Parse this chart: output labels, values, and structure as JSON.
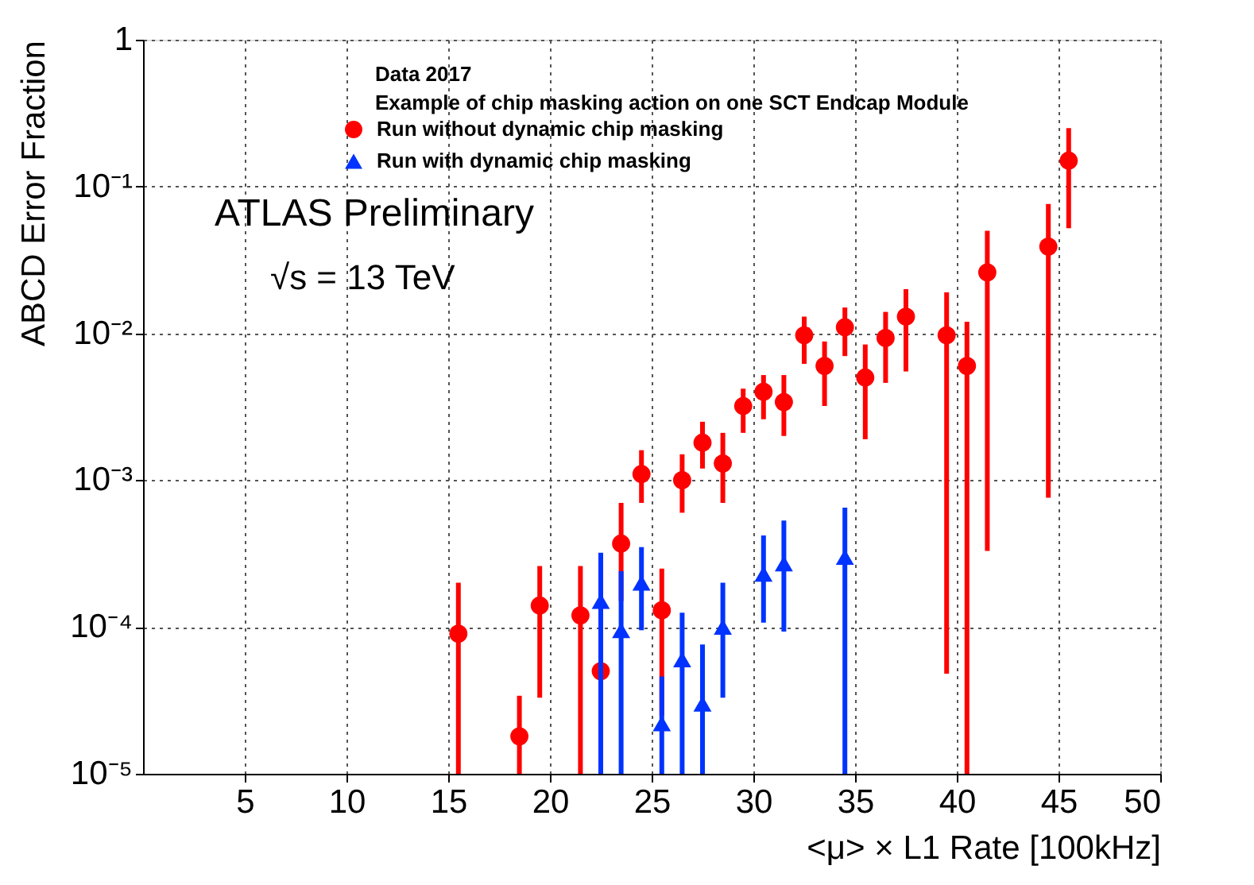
{
  "chart_data": {
    "type": "scatter",
    "xlabel": "<μ> × L1 Rate [100kHz]",
    "ylabel": "ABCD Error Fraction",
    "annotations": [
      "Data 2017",
      "Example of chip masking action on one SCT Endcap Module",
      "ATLAS Preliminary",
      "√s = 13 TeV"
    ],
    "xlim": [
      0,
      50
    ],
    "xticks": [
      5,
      10,
      15,
      20,
      25,
      30,
      35,
      40,
      45,
      50
    ],
    "ylim": [
      1e-05,
      1
    ],
    "log": true,
    "yticks": [
      {
        "value": 1e-05,
        "label": "10⁻⁵"
      },
      {
        "value": 0.0001,
        "label": "10⁻⁴"
      },
      {
        "value": 0.001,
        "label": "10⁻³"
      },
      {
        "value": 0.01,
        "label": "10⁻²"
      },
      {
        "value": 0.1,
        "label": "10⁻¹"
      },
      1
    ],
    "grid": true,
    "legend": "top left",
    "series": [
      {
        "name": "Run without dynamic chip masking",
        "color": "#ff0000",
        "marker": "circle",
        "x": [
          15.5,
          18.5,
          19.5,
          21.5,
          22.5,
          23.5,
          24.5,
          25.5,
          26.5,
          27.5,
          28.5,
          29.5,
          30.5,
          31.5,
          32.5,
          33.5,
          34.5,
          35.5,
          36.5,
          37.5,
          39.5,
          40.5,
          41.5,
          44.5,
          45.5
        ],
        "values": [
          9e-05,
          1.8e-05,
          0.00014,
          0.00012,
          5e-05,
          0.00037,
          0.0011,
          0.00013,
          0.001,
          0.0018,
          0.0013,
          0.0032,
          0.004,
          0.0034,
          0.0097,
          0.006,
          0.011,
          0.005,
          0.0093,
          0.013,
          0.0097,
          0.006,
          0.026,
          0.039,
          0.15
        ],
        "errors": [
          [
            1e-05,
            0.0002
          ],
          [
            1e-05,
            3.4e-05
          ],
          [
            3.3e-05,
            0.00026
          ],
          [
            1e-05,
            0.00026
          ],
          null,
          [
            0.00015,
            0.0007
          ],
          [
            0.0007,
            0.0016
          ],
          [
            2.5e-05,
            0.00025
          ],
          [
            0.0006,
            0.0015
          ],
          [
            0.0012,
            0.0025
          ],
          [
            0.0007,
            0.0021
          ],
          [
            0.0021,
            0.0042
          ],
          [
            0.0026,
            0.0052
          ],
          [
            0.002,
            0.0052
          ],
          [
            0.0062,
            0.013
          ],
          [
            0.0032,
            0.0088
          ],
          [
            0.007,
            0.015
          ],
          [
            0.0019,
            0.0084
          ],
          [
            0.0046,
            0.014
          ],
          [
            0.0055,
            0.02
          ],
          [
            4.8e-05,
            0.019
          ],
          [
            1e-05,
            0.012
          ],
          [
            0.00033,
            0.05
          ],
          [
            0.00076,
            0.076
          ],
          [
            0.052,
            0.25
          ]
        ]
      },
      {
        "name": "Run with dynamic chip masking",
        "color": "#0033ff",
        "marker": "triangle",
        "x": [
          22.5,
          23.5,
          24.5,
          25.5,
          26.5,
          27.5,
          28.5,
          30.5,
          31.5,
          34.5
        ],
        "values": [
          0.00015,
          9.5e-05,
          0.0002,
          2.2e-05,
          6e-05,
          3e-05,
          0.0001,
          0.00023,
          0.00027,
          0.0003
        ],
        "errors": [
          [
            1e-05,
            0.00032
          ],
          [
            1e-05,
            0.00024
          ],
          [
            9.5e-05,
            0.00035
          ],
          [
            1e-05,
            4.6e-05
          ],
          [
            1e-05,
            0.000125
          ],
          [
            1e-05,
            7.6e-05
          ],
          [
            3.3e-05,
            0.0002
          ],
          [
            0.000107,
            0.00042
          ],
          [
            9.3e-05,
            0.00053
          ],
          [
            1e-05,
            0.00065
          ]
        ]
      }
    ]
  }
}
